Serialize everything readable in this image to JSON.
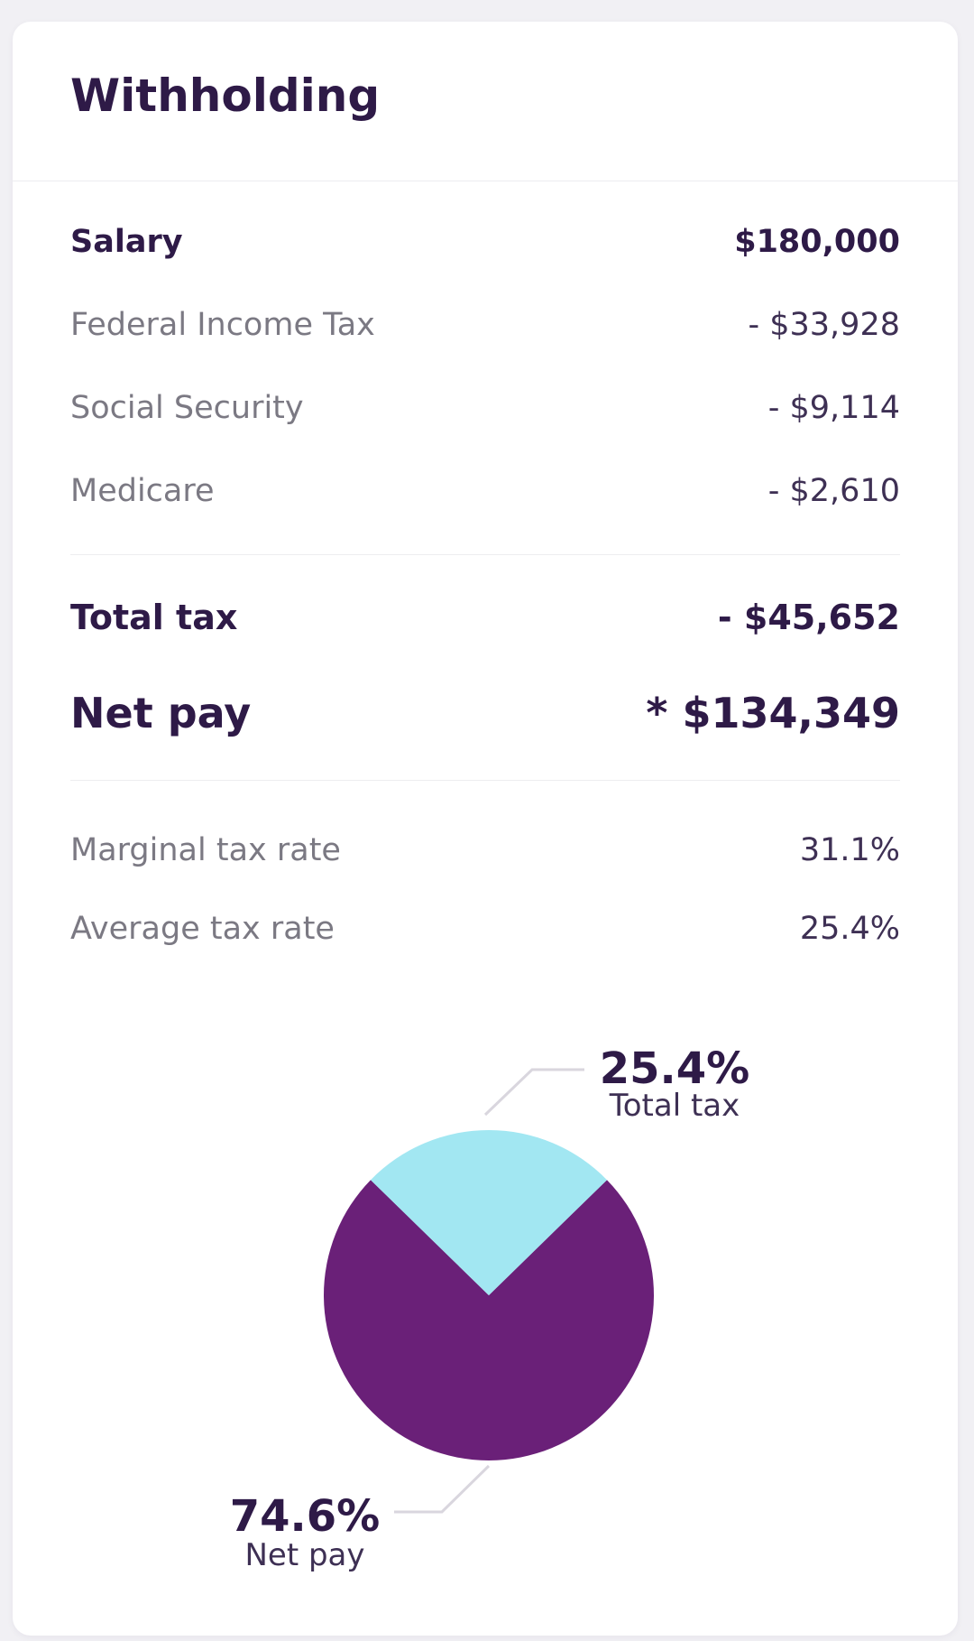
{
  "window": {
    "background": "#f1f0f4",
    "card_background": "#ffffff"
  },
  "header": {
    "title": "Withholding"
  },
  "breakdown": {
    "rows": [
      {
        "label": "Salary",
        "value": "$180,000"
      },
      {
        "label": "Federal Income Tax",
        "value": "- $33,928"
      },
      {
        "label": "Social Security",
        "value": "- $9,114"
      },
      {
        "label": "Medicare",
        "value": "- $2,610"
      }
    ],
    "total_tax": {
      "label": "Total tax",
      "value": "- $45,652"
    },
    "net_pay": {
      "label": "Net pay",
      "value": "* $134,349"
    },
    "rates": [
      {
        "label": "Marginal tax rate",
        "value": "31.1%"
      },
      {
        "label": "Average tax rate",
        "value": "25.4%"
      }
    ]
  },
  "chart_data": {
    "type": "pie",
    "title": "",
    "legend": "none",
    "labels_position": "outside-with-leader-lines",
    "orientation": "total-tax-slice-centered-at-top",
    "slices": [
      {
        "label": "Total tax",
        "pct": 25.4,
        "display": "25.4%",
        "color": "#a2e7f2"
      },
      {
        "label": "Net pay",
        "pct": 74.6,
        "display": "74.6%",
        "color": "#6a2078"
      }
    ]
  },
  "colors": {
    "heading_text": "#2e1a47",
    "muted_label": "#7b7983",
    "value_text": "#3e3054",
    "divider": "#ededf0",
    "leader_line": "#d9d6de",
    "pie_total_tax": "#a2e7f2",
    "pie_net_pay": "#6a2078"
  }
}
